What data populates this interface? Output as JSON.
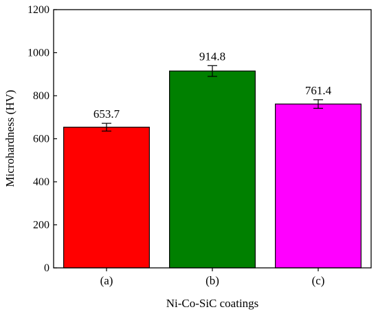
{
  "chart_data": {
    "type": "bar",
    "categories": [
      "(a)",
      "(b)",
      "(c)"
    ],
    "values": [
      653.7,
      914.8,
      761.4
    ],
    "value_labels": [
      "653.7",
      "914.8",
      "761.4"
    ],
    "error": [
      18,
      25,
      20
    ],
    "colors": [
      "#ff0000",
      "#008000",
      "#ff00ff"
    ],
    "xlabel": "Ni-Co-SiC coatings",
    "ylabel": "Microhardness (HV)",
    "ylim": [
      0,
      1200
    ],
    "yticks": [
      0,
      200,
      400,
      600,
      800,
      1000,
      1200
    ],
    "grid": false
  }
}
